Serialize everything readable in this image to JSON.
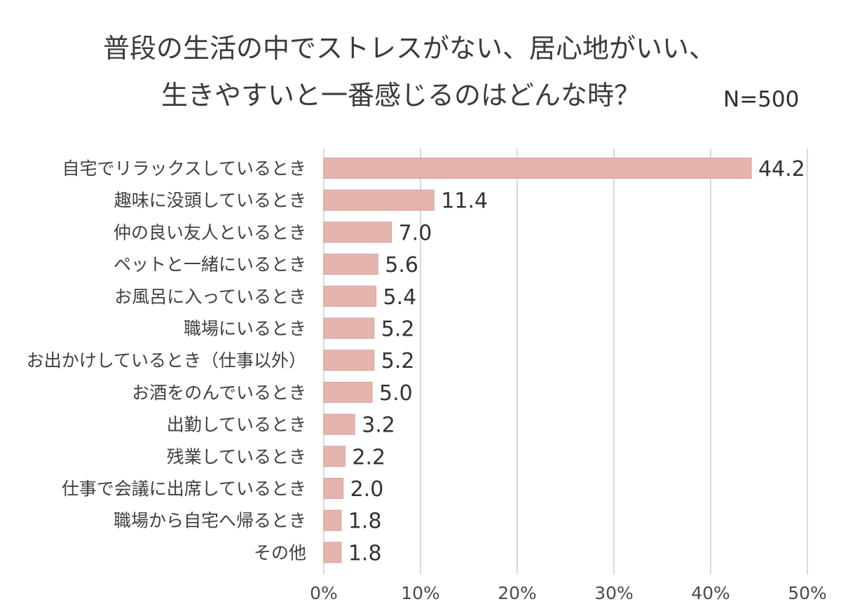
{
  "chart_data": {
    "type": "bar",
    "orientation": "horizontal",
    "title_line1": "普段の生活の中でストレスがない、居心地がいい、",
    "title_line2": "生きやすいと一番感じるのはどんな時？",
    "sample_size": "N=500",
    "categories": [
      "自宅でリラックスしているとき",
      "趣味に没頭しているとき",
      "仲の良い友人といるとき",
      "ペットと一緒にいるとき",
      "お風呂に入っているとき",
      "職場にいるとき",
      "お出かけしているとき（仕事以外）",
      "お酒をのんでいるとき",
      "出勤しているとき",
      "残業しているとき",
      "仕事で会議に出席しているとき",
      "職場から自宅へ帰るとき",
      "その他"
    ],
    "values": [
      44.2,
      11.4,
      7.0,
      5.6,
      5.4,
      5.2,
      5.2,
      5.0,
      3.2,
      2.2,
      2.0,
      1.8,
      1.8
    ],
    "value_labels": [
      "44.2",
      "11.4",
      "7.0",
      "5.6",
      "5.4",
      "5.2",
      "5.2",
      "5.0",
      "3.2",
      "2.2",
      "2.0",
      "1.8",
      "1.8"
    ],
    "xlim": [
      0,
      50
    ],
    "ticks": [
      0,
      10,
      20,
      30,
      40,
      50
    ],
    "tick_labels": [
      "0%",
      "10%",
      "20%",
      "30%",
      "40%",
      "50%"
    ],
    "grid": "vertical",
    "legend": "none",
    "bar_color": "#e6b4af",
    "bar_edge_color": "#d79e98",
    "grid_color": "#d9d9d9"
  }
}
